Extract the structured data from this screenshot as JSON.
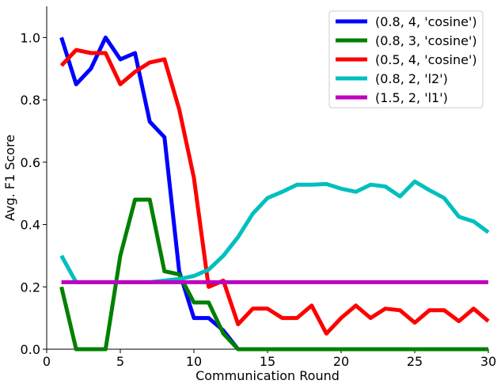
{
  "chart_data": {
    "type": "line",
    "xlabel": "Communication Round",
    "ylabel": "Avg. F1 Score",
    "xlim": [
      0,
      30
    ],
    "ylim": [
      0,
      1.1
    ],
    "xticks": [
      "0",
      "5",
      "10",
      "15",
      "20",
      "25",
      "30"
    ],
    "yticks": [
      "0.0",
      "0.2",
      "0.4",
      "0.6",
      "0.8",
      "1.0"
    ],
    "grid": false,
    "legend_position": "top-right",
    "x": [
      1,
      2,
      3,
      4,
      5,
      6,
      7,
      8,
      9,
      10,
      11,
      12,
      13,
      14,
      15,
      16,
      17,
      18,
      19,
      20,
      21,
      22,
      23,
      24,
      25,
      26,
      27,
      28,
      29,
      30
    ],
    "series": [
      {
        "name": "(0.8, 4, 'cosine')",
        "color": "#0000ff",
        "values": [
          1.0,
          0.85,
          0.9,
          1.0,
          0.93,
          0.95,
          0.73,
          0.68,
          0.25,
          0.1,
          0.1,
          0.06,
          0.0,
          0.0,
          0.0,
          0.0,
          0.0,
          0.0,
          0.0,
          0.0,
          0.0,
          0.0,
          0.0,
          0.0,
          0.0,
          0.0,
          0.0,
          0.0,
          0.0,
          0.0
        ]
      },
      {
        "name": "(0.8, 3, 'cosine')",
        "color": "#008000",
        "values": [
          0.2,
          0.0,
          0.0,
          0.0,
          0.3,
          0.48,
          0.48,
          0.25,
          0.24,
          0.15,
          0.15,
          0.05,
          0.0,
          0.0,
          0.0,
          0.0,
          0.0,
          0.0,
          0.0,
          0.0,
          0.0,
          0.0,
          0.0,
          0.0,
          0.0,
          0.0,
          0.0,
          0.0,
          0.0,
          0.0
        ]
      },
      {
        "name": "(0.5, 4, 'cosine')",
        "color": "#ff0000",
        "values": [
          0.91,
          0.96,
          0.95,
          0.95,
          0.85,
          0.89,
          0.92,
          0.93,
          0.77,
          0.55,
          0.2,
          0.22,
          0.08,
          0.13,
          0.13,
          0.1,
          0.1,
          0.14,
          0.05,
          0.1,
          0.14,
          0.1,
          0.13,
          0.125,
          0.085,
          0.125,
          0.125,
          0.09,
          0.13,
          0.09
        ]
      },
      {
        "name": "(0.8, 2, 'l2')",
        "color": "#00bfbf",
        "values": [
          0.3,
          0.215,
          0.215,
          0.215,
          0.215,
          0.215,
          0.215,
          0.22,
          0.225,
          0.235,
          0.255,
          0.3,
          0.36,
          0.435,
          0.485,
          0.505,
          0.528,
          0.528,
          0.53,
          0.515,
          0.505,
          0.528,
          0.522,
          0.49,
          0.538,
          0.51,
          0.485,
          0.425,
          0.41,
          0.375
        ]
      },
      {
        "name": "(1.5, 2, 'l1')",
        "color": "#bf00bf",
        "values": [
          0.215,
          0.215,
          0.215,
          0.215,
          0.215,
          0.215,
          0.215,
          0.215,
          0.215,
          0.215,
          0.215,
          0.215,
          0.215,
          0.215,
          0.215,
          0.215,
          0.215,
          0.215,
          0.215,
          0.215,
          0.215,
          0.215,
          0.215,
          0.215,
          0.215,
          0.215,
          0.215,
          0.215,
          0.215,
          0.215
        ]
      }
    ]
  }
}
